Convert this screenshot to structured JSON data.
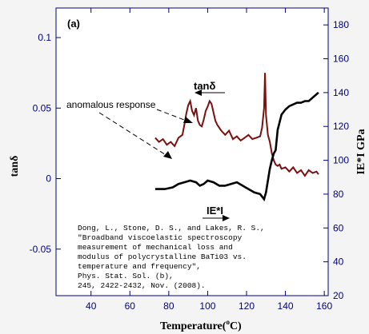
{
  "chart_data": {
    "type": "line",
    "panel_label": "(a)",
    "xlabel": "Temperature(°C)",
    "xlabel_parts": [
      "Temperature(",
      "o",
      "C)"
    ],
    "ylabel_left": "tanδ",
    "ylabel_right": "IE*I GPa",
    "xlim": [
      22,
      162
    ],
    "ylim_left": [
      -0.083,
      0.121
    ],
    "ylim_right": [
      20,
      190
    ],
    "x_ticks": [
      40,
      60,
      80,
      100,
      120,
      140,
      160
    ],
    "y_ticks_left": [
      0.1,
      0.05,
      0,
      -0.05
    ],
    "y_ticks_left_labels": [
      "0.1",
      "0.05",
      "0",
      "-0.05"
    ],
    "y_ticks_right": [
      180,
      160,
      140,
      120,
      100,
      80,
      60,
      40,
      20
    ],
    "series": [
      {
        "name": "tanδ",
        "axis": "left",
        "color": "#7a0f0f",
        "points": [
          [
            73,
            0.029
          ],
          [
            75,
            0.026
          ],
          [
            77,
            0.028
          ],
          [
            79,
            0.024
          ],
          [
            81,
            0.026
          ],
          [
            83,
            0.023
          ],
          [
            85,
            0.029
          ],
          [
            87,
            0.031
          ],
          [
            88,
            0.038
          ],
          [
            89,
            0.046
          ],
          [
            90,
            0.052
          ],
          [
            91,
            0.055
          ],
          [
            92,
            0.048
          ],
          [
            93,
            0.045
          ],
          [
            94,
            0.05
          ],
          [
            95,
            0.041
          ],
          [
            96,
            0.038
          ],
          [
            97,
            0.037
          ],
          [
            98,
            0.042
          ],
          [
            99,
            0.048
          ],
          [
            100,
            0.051
          ],
          [
            101,
            0.055
          ],
          [
            102,
            0.053
          ],
          [
            103,
            0.047
          ],
          [
            104,
            0.041
          ],
          [
            105,
            0.038
          ],
          [
            107,
            0.034
          ],
          [
            109,
            0.031
          ],
          [
            111,
            0.034
          ],
          [
            113,
            0.028
          ],
          [
            115,
            0.03
          ],
          [
            117,
            0.027
          ],
          [
            119,
            0.029
          ],
          [
            121,
            0.031
          ],
          [
            123,
            0.028
          ],
          [
            125,
            0.029
          ],
          [
            127,
            0.03
          ],
          [
            128,
            0.036
          ],
          [
            129,
            0.05
          ],
          [
            129.5,
            0.075
          ],
          [
            130,
            0.045
          ],
          [
            131,
            0.031
          ],
          [
            132,
            0.026
          ],
          [
            133,
            0.018
          ],
          [
            134,
            0.013
          ],
          [
            135,
            0.01
          ],
          [
            136,
            0.009
          ],
          [
            137,
            0.01
          ],
          [
            138,
            0.007
          ],
          [
            140,
            0.008
          ],
          [
            142,
            0.005
          ],
          [
            144,
            0.008
          ],
          [
            146,
            0.004
          ],
          [
            148,
            0.006
          ],
          [
            150,
            0.002
          ],
          [
            152,
            0.006
          ],
          [
            154,
            0.004
          ],
          [
            156,
            0.005
          ],
          [
            157,
            0.003
          ]
        ]
      },
      {
        "name": "IE*I",
        "axis": "right",
        "color": "#000000",
        "points": [
          [
            73,
            83
          ],
          [
            78,
            83
          ],
          [
            82,
            84
          ],
          [
            85,
            86
          ],
          [
            88,
            87
          ],
          [
            91,
            88
          ],
          [
            94,
            87
          ],
          [
            96,
            85
          ],
          [
            98,
            86
          ],
          [
            100,
            88
          ],
          [
            103,
            87
          ],
          [
            106,
            85
          ],
          [
            109,
            85
          ],
          [
            112,
            86
          ],
          [
            115,
            87
          ],
          [
            118,
            85
          ],
          [
            121,
            83
          ],
          [
            124,
            81
          ],
          [
            127,
            80
          ],
          [
            129,
            77
          ],
          [
            130,
            81
          ],
          [
            131,
            88
          ],
          [
            132,
            95
          ],
          [
            133,
            100
          ],
          [
            134,
            104
          ],
          [
            135,
            106
          ],
          [
            136,
            118
          ],
          [
            138,
            127
          ],
          [
            140,
            130
          ],
          [
            142,
            132
          ],
          [
            144,
            133
          ],
          [
            146,
            134
          ],
          [
            148,
            134
          ],
          [
            150,
            135
          ],
          [
            152,
            135
          ],
          [
            154,
            137
          ],
          [
            156,
            139
          ],
          [
            157,
            140
          ]
        ]
      }
    ],
    "annotations": {
      "tan_label": "tanδ",
      "modulus_label": "IE*I",
      "anomalous": "anomalous response",
      "citation": [
        "Dong, L., Stone, D. S., and Lakes, R. S.,",
        "\"Broadband viscoelastic spectroscopy",
        "measurement of mechanical loss and",
        "modulus of polycrystalline BaTi03 vs.",
        "temperature and frequency\",",
        "Phys. Stat. Sol. (b),",
        "245, 2422-2432, Nov. (2008)."
      ]
    },
    "grid": false
  }
}
